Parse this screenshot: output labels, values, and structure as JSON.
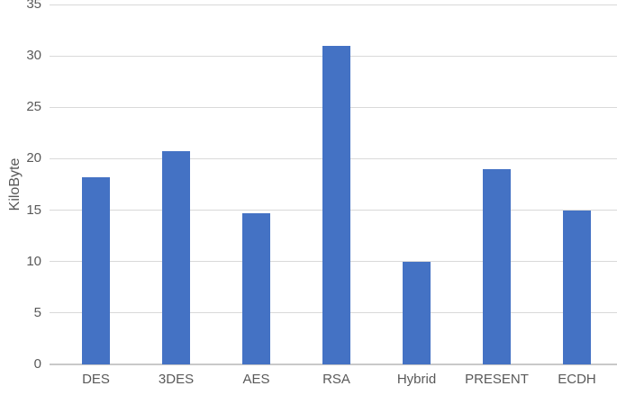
{
  "chart_data": {
    "type": "bar",
    "title": "",
    "categories": [
      "DES",
      "3DES",
      "AES",
      "RSA",
      "Hybrid",
      "PRESENT",
      "ECDH"
    ],
    "values": [
      18.2,
      20.7,
      14.7,
      31,
      10,
      19,
      15
    ],
    "series": [
      {
        "name": "KiloByte",
        "values": [
          18.2,
          20.7,
          14.7,
          31,
          10,
          19,
          15
        ]
      }
    ],
    "xlabel": "",
    "ylabel": "KiloByte",
    "ylim": [
      0,
      35
    ],
    "yticks": [
      0,
      5,
      10,
      15,
      20,
      25,
      30,
      35
    ],
    "grid": "horizontal",
    "legend_position": "none",
    "colors": {
      "bar": "#4472C4",
      "gridline": "#D9D9D9",
      "axis_line": "#C9C9C9",
      "label_text": "#595959",
      "background": "#FFFFFF"
    }
  }
}
